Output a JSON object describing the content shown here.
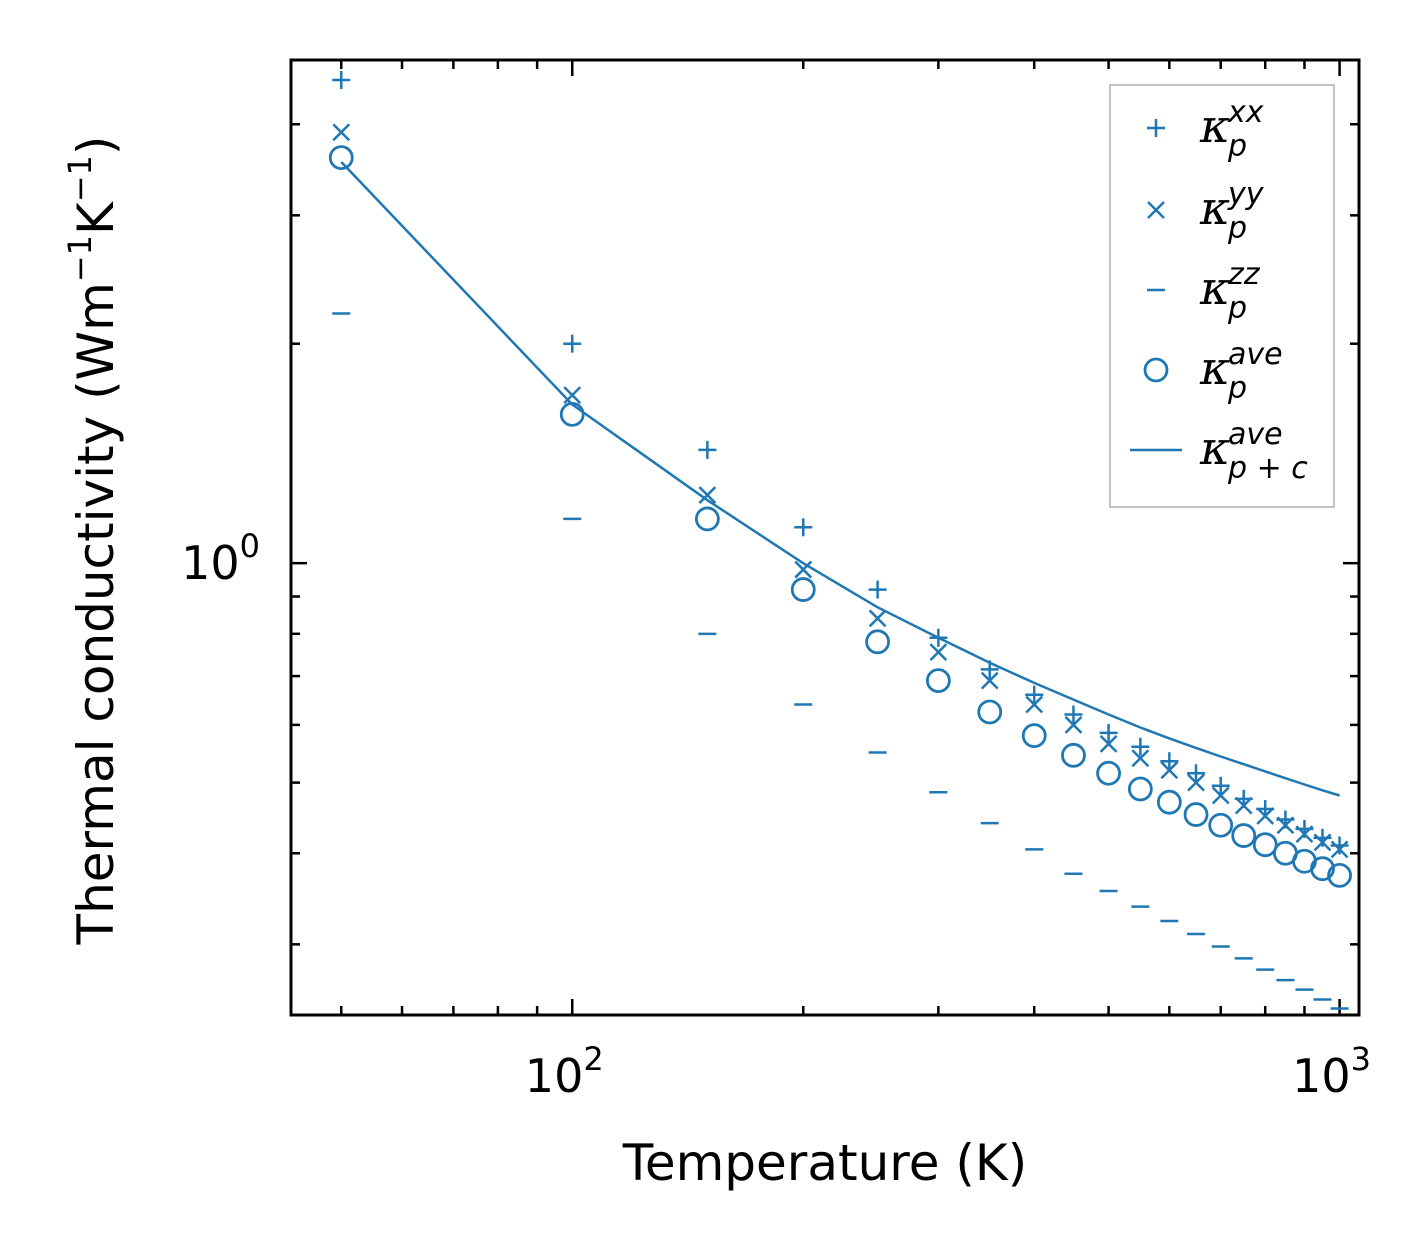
{
  "chart_data": {
    "type": "scatter",
    "title": "",
    "xlabel": "Temperature (K)",
    "ylabel": "Thermal conductivity (Wm",
    "ylabel_parts": {
      "text1": "Thermal conductivity (Wm",
      "sup1": "−1",
      "text2": "K",
      "sup2": "−1",
      "text3": ")"
    },
    "xscale": "log",
    "yscale": "log",
    "xlim": [
      43,
      1060
    ],
    "ylim": [
      0.24,
      4.9
    ],
    "xticks": [
      {
        "base": "10",
        "exp": "2",
        "value": 100
      },
      {
        "base": "10",
        "exp": "3",
        "value": 1000
      }
    ],
    "yticks": [
      {
        "base": "10",
        "exp": "0",
        "value": 1
      }
    ],
    "color": "#1f77b4",
    "x": [
      50,
      100,
      150,
      200,
      250,
      300,
      350,
      400,
      450,
      500,
      550,
      600,
      650,
      700,
      750,
      800,
      850,
      900,
      950,
      1000
    ],
    "series": [
      {
        "name": "xx",
        "marker": "plus",
        "label_base": "κ",
        "label_sup": "xx",
        "label_sub": "p",
        "values": [
          4.6,
          2.0,
          1.43,
          1.12,
          0.92,
          0.79,
          0.715,
          0.66,
          0.62,
          0.585,
          0.56,
          0.535,
          0.515,
          0.495,
          0.475,
          0.46,
          0.445,
          0.432,
          0.42,
          0.41
        ]
      },
      {
        "name": "yy",
        "marker": "x",
        "label_base": "κ",
        "label_sup": "yy",
        "label_sub": "p",
        "values": [
          3.9,
          1.7,
          1.24,
          0.98,
          0.84,
          0.755,
          0.69,
          0.64,
          0.6,
          0.565,
          0.54,
          0.52,
          0.5,
          0.48,
          0.465,
          0.45,
          0.437,
          0.425,
          0.414,
          0.405
        ]
      },
      {
        "name": "zz",
        "marker": "hline",
        "label_base": "κ",
        "label_sup": "zz",
        "label_sub": "p",
        "values": [
          2.2,
          1.15,
          0.8,
          0.64,
          0.55,
          0.485,
          0.44,
          0.405,
          0.375,
          0.355,
          0.338,
          0.323,
          0.31,
          0.298,
          0.287,
          0.277,
          0.268,
          0.26,
          0.252,
          0.245
        ]
      },
      {
        "name": "ave",
        "marker": "circle",
        "label_base": "κ",
        "label_sup": "ave",
        "label_sub": "p",
        "values": [
          3.6,
          1.6,
          1.15,
          0.92,
          0.78,
          0.69,
          0.625,
          0.58,
          0.545,
          0.515,
          0.49,
          0.47,
          0.452,
          0.437,
          0.423,
          0.411,
          0.4,
          0.39,
          0.381,
          0.373
        ]
      },
      {
        "name": "ave_pc",
        "marker": "line",
        "label_base": "κ",
        "label_sup": "ave",
        "label_sub": "p + c",
        "values": [
          3.55,
          1.65,
          1.22,
          1.0,
          0.87,
          0.79,
          0.73,
          0.685,
          0.65,
          0.62,
          0.595,
          0.575,
          0.558,
          0.543,
          0.53,
          0.518,
          0.507,
          0.497,
          0.488,
          0.48
        ]
      }
    ],
    "legend_position": "top-right",
    "grid": false
  }
}
